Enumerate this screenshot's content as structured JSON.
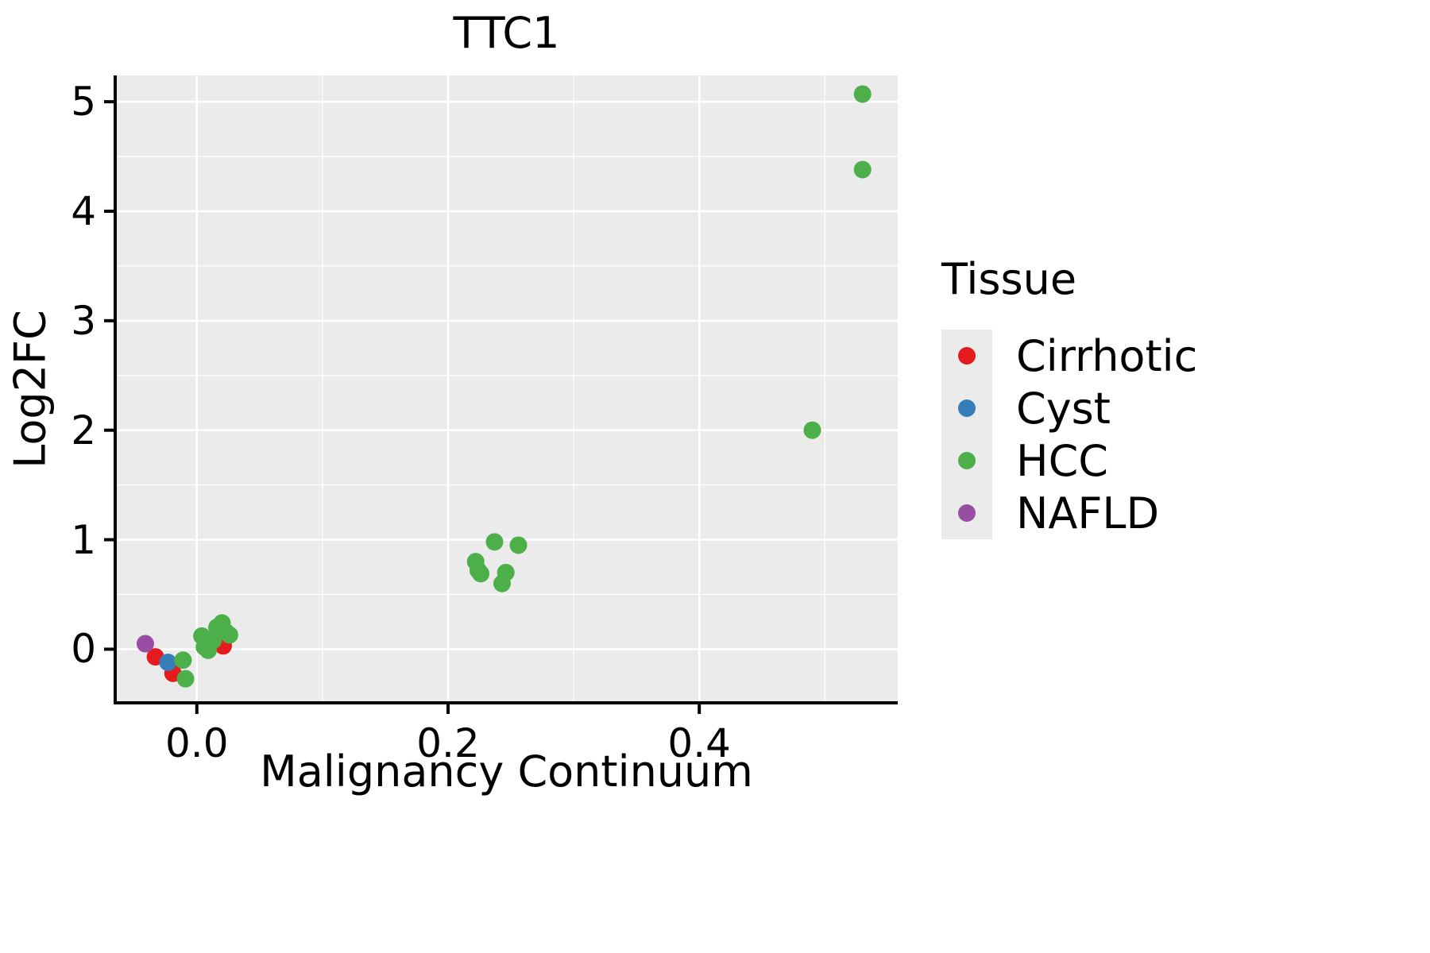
{
  "chart_data": {
    "type": "scatter",
    "title": "TTC1",
    "xlabel": "Malignancy Continuum",
    "ylabel": "Log2FC",
    "legend_title": "Tissue",
    "legend_position": "right",
    "grid": true,
    "panel_bg": "#ebebeb",
    "grid_color": "#ffffff",
    "xlim": [
      -0.065,
      0.558
    ],
    "ylim": [
      -0.49,
      5.24
    ],
    "x_ticks": [
      0.0,
      0.2,
      0.4
    ],
    "x_tick_labels": [
      "0.0",
      "0.2",
      "0.4"
    ],
    "x_minor_ticks": [
      0.1,
      0.3,
      0.5
    ],
    "y_ticks": [
      0,
      1,
      2,
      3,
      4,
      5
    ],
    "y_tick_labels": [
      "0",
      "1",
      "2",
      "3",
      "4",
      "5"
    ],
    "y_minor_ticks": [
      0.5,
      1.5,
      2.5,
      3.5,
      4.5
    ],
    "series": [
      {
        "name": "Cirrhotic",
        "color": "#e41a1c",
        "points": [
          [
            -0.033,
            -0.07
          ],
          [
            -0.019,
            -0.22
          ],
          [
            0.021,
            0.03
          ]
        ]
      },
      {
        "name": "Cyst",
        "color": "#377eb8",
        "points": [
          [
            -0.023,
            -0.12
          ]
        ]
      },
      {
        "name": "HCC",
        "color": "#4daf4a",
        "points": [
          [
            -0.011,
            -0.1
          ],
          [
            -0.009,
            -0.27
          ],
          [
            0.004,
            0.12
          ],
          [
            0.006,
            0.02
          ],
          [
            0.009,
            -0.01
          ],
          [
            0.013,
            0.08
          ],
          [
            0.016,
            0.2
          ],
          [
            0.02,
            0.24
          ],
          [
            0.023,
            0.16
          ],
          [
            0.026,
            0.13
          ],
          [
            0.222,
            0.8
          ],
          [
            0.224,
            0.72
          ],
          [
            0.226,
            0.69
          ],
          [
            0.237,
            0.98
          ],
          [
            0.243,
            0.6
          ],
          [
            0.246,
            0.7
          ],
          [
            0.256,
            0.95
          ],
          [
            0.49,
            2.0
          ],
          [
            0.53,
            5.07
          ],
          [
            0.53,
            4.38
          ]
        ]
      },
      {
        "name": "NAFLD",
        "color": "#984ea3",
        "points": [
          [
            -0.041,
            0.05
          ]
        ]
      }
    ]
  }
}
